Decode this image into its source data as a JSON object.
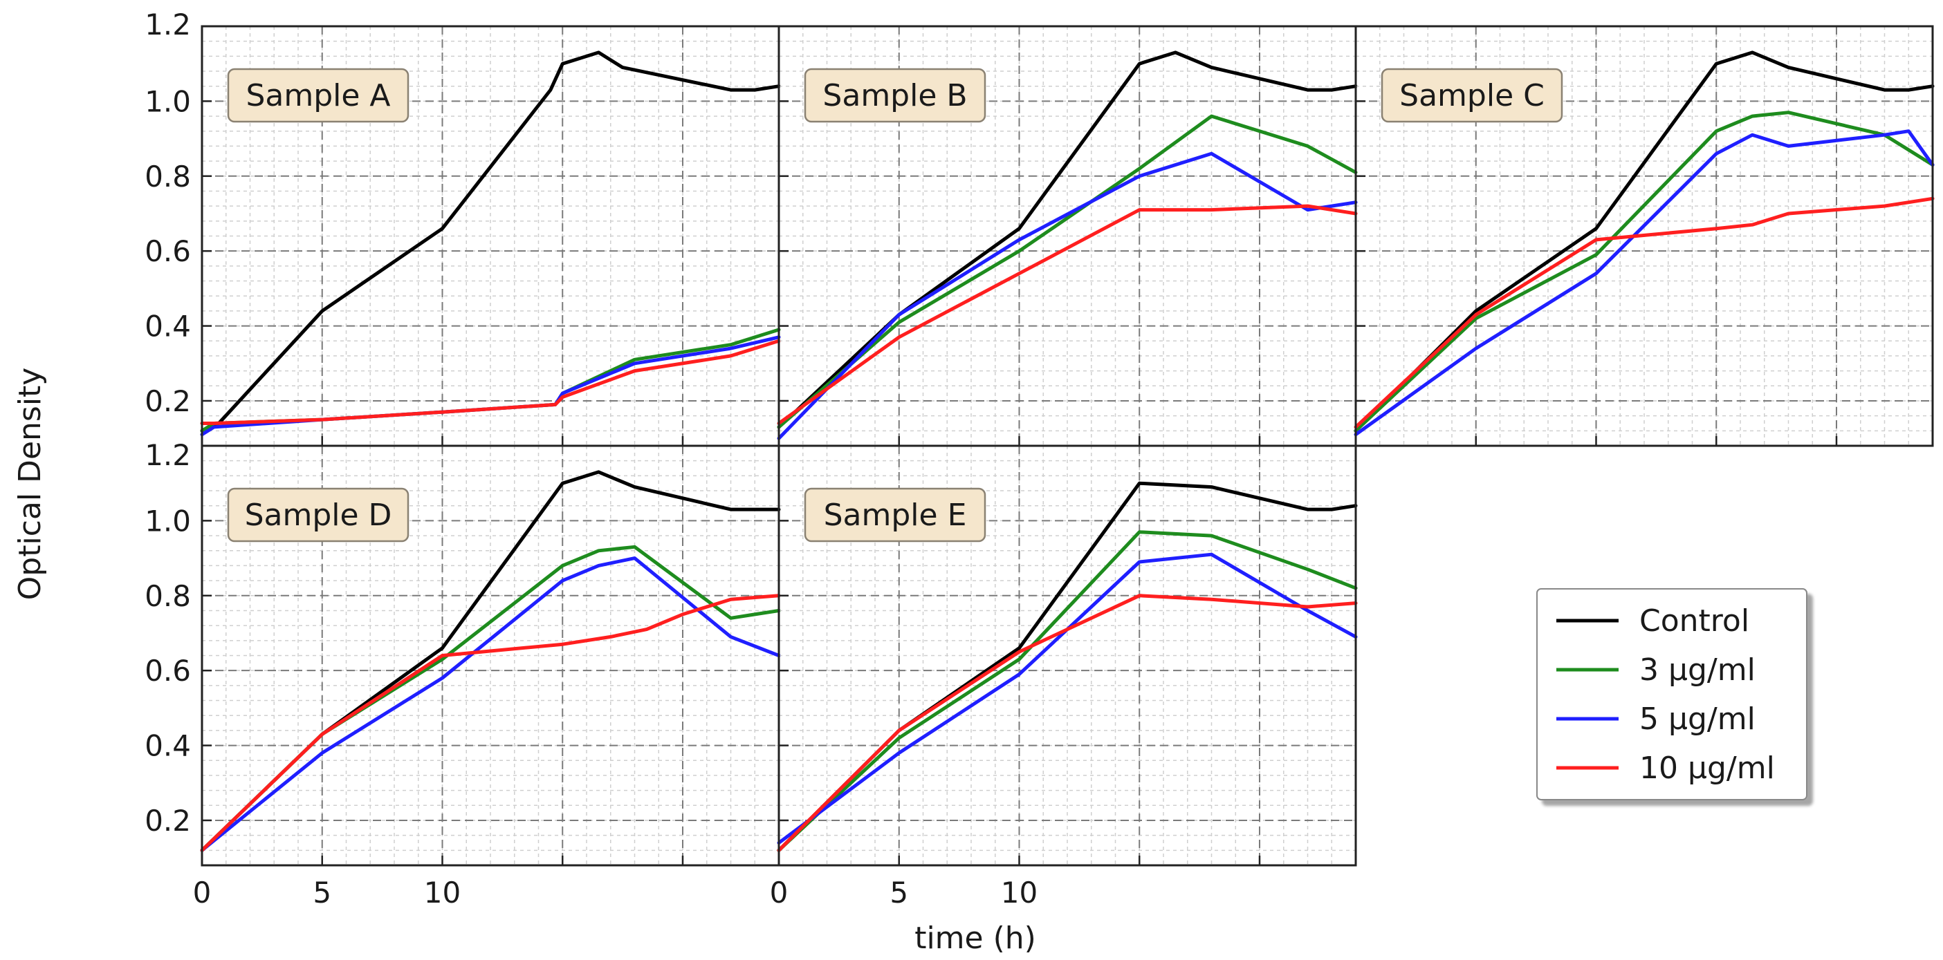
{
  "chart_data": {
    "type": "line",
    "ylabel": "Optical Density",
    "xlabel": "time (h)",
    "xlim": [
      0,
      24
    ],
    "ylim": [
      0.08,
      1.2
    ],
    "x_tick_labels": [
      "0",
      "5",
      "10"
    ],
    "y_tick_labels": [
      "0.2",
      "0.4",
      "0.6",
      "0.8",
      "1.0",
      "1.2"
    ],
    "grid": true,
    "legend_position": "lower-right (outside panels)",
    "legend": [
      {
        "name": "Control",
        "color": "#000000"
      },
      {
        "name": "3 μg/ml",
        "color": "#1e8c1e"
      },
      {
        "name": "5 μg/ml",
        "color": "#1f1fff"
      },
      {
        "name": "10 μg/ml",
        "color": "#ff1f1f"
      }
    ],
    "panels": [
      {
        "title": "Sample A",
        "series": [
          {
            "name": "Control",
            "color": "#000000",
            "x": [
              0,
              0.7,
              5,
              10,
              14.5,
              15,
              16.5,
              17.5,
              22,
              23,
              24
            ],
            "y": [
              0.12,
              0.14,
              0.44,
              0.66,
              1.03,
              1.1,
              1.13,
              1.09,
              1.03,
              1.03,
              1.04
            ]
          },
          {
            "name": "3 μg/ml",
            "color": "#1e8c1e",
            "x": [
              0,
              0.5,
              5,
              10,
              14.7,
              15,
              18,
              22,
              24
            ],
            "y": [
              0.12,
              0.14,
              0.15,
              0.17,
              0.19,
              0.22,
              0.31,
              0.35,
              0.39
            ]
          },
          {
            "name": "5 μg/ml",
            "color": "#1f1fff",
            "x": [
              0,
              0.5,
              5,
              10,
              14.7,
              15,
              18,
              22,
              24
            ],
            "y": [
              0.11,
              0.13,
              0.15,
              0.17,
              0.19,
              0.22,
              0.3,
              0.34,
              0.37
            ]
          },
          {
            "name": "10 μg/ml",
            "color": "#ff1f1f",
            "x": [
              0,
              0.5,
              5,
              10,
              14.7,
              15,
              18,
              22,
              24
            ],
            "y": [
              0.14,
              0.14,
              0.15,
              0.17,
              0.19,
              0.21,
              0.28,
              0.32,
              0.36
            ]
          }
        ]
      },
      {
        "title": "Sample B",
        "series": [
          {
            "name": "Control",
            "color": "#000000",
            "x": [
              0,
              5,
              10,
              15,
              16.5,
              18,
              22,
              23,
              24
            ],
            "y": [
              0.13,
              0.43,
              0.66,
              1.1,
              1.13,
              1.09,
              1.03,
              1.03,
              1.04
            ]
          },
          {
            "name": "3 μg/ml",
            "color": "#1e8c1e",
            "x": [
              0,
              5,
              10,
              15,
              18,
              22,
              24
            ],
            "y": [
              0.13,
              0.41,
              0.6,
              0.82,
              0.96,
              0.88,
              0.81
            ]
          },
          {
            "name": "5 μg/ml",
            "color": "#1f1fff",
            "x": [
              0,
              5,
              10,
              15,
              18,
              22,
              24
            ],
            "y": [
              0.1,
              0.43,
              0.63,
              0.8,
              0.86,
              0.71,
              0.73
            ]
          },
          {
            "name": "10 μg/ml",
            "color": "#ff1f1f",
            "x": [
              0,
              5,
              10,
              15,
              16,
              18,
              22,
              24
            ],
            "y": [
              0.14,
              0.37,
              0.54,
              0.71,
              0.71,
              0.71,
              0.72,
              0.7
            ]
          }
        ]
      },
      {
        "title": "Sample C",
        "series": [
          {
            "name": "Control",
            "color": "#000000",
            "x": [
              0,
              5,
              10,
              15,
              16.5,
              18,
              22,
              23,
              24
            ],
            "y": [
              0.12,
              0.44,
              0.66,
              1.1,
              1.13,
              1.09,
              1.03,
              1.03,
              1.04
            ]
          },
          {
            "name": "3 μg/ml",
            "color": "#1e8c1e",
            "x": [
              0,
              5,
              10,
              15,
              16.5,
              18,
              22,
              24
            ],
            "y": [
              0.12,
              0.42,
              0.59,
              0.92,
              0.96,
              0.97,
              0.91,
              0.83
            ]
          },
          {
            "name": "5 μg/ml",
            "color": "#1f1fff",
            "x": [
              0,
              5,
              10,
              15,
              16.5,
              18,
              22,
              23,
              24
            ],
            "y": [
              0.11,
              0.34,
              0.54,
              0.86,
              0.91,
              0.88,
              0.91,
              0.92,
              0.83
            ]
          },
          {
            "name": "10 μg/ml",
            "color": "#ff1f1f",
            "x": [
              0,
              5,
              10,
              15,
              16.5,
              18,
              22,
              24
            ],
            "y": [
              0.13,
              0.43,
              0.63,
              0.66,
              0.67,
              0.7,
              0.72,
              0.74
            ]
          }
        ]
      },
      {
        "title": "Sample D",
        "series": [
          {
            "name": "Control",
            "color": "#000000",
            "x": [
              0,
              5,
              10,
              15,
              16.5,
              18,
              22,
              23,
              24
            ],
            "y": [
              0.12,
              0.43,
              0.66,
              1.1,
              1.13,
              1.09,
              1.03,
              1.03,
              1.03
            ]
          },
          {
            "name": "3 μg/ml",
            "color": "#1e8c1e",
            "x": [
              0,
              5,
              10,
              15,
              16.5,
              18,
              22,
              23,
              24
            ],
            "y": [
              0.12,
              0.43,
              0.63,
              0.88,
              0.92,
              0.93,
              0.74,
              0.75,
              0.76
            ]
          },
          {
            "name": "5 μg/ml",
            "color": "#1f1fff",
            "x": [
              0,
              5,
              10,
              15,
              16.5,
              18,
              22,
              24
            ],
            "y": [
              0.12,
              0.38,
              0.58,
              0.84,
              0.88,
              0.9,
              0.69,
              0.64
            ]
          },
          {
            "name": "10 μg/ml",
            "color": "#ff1f1f",
            "x": [
              0,
              5,
              10,
              15,
              17,
              18.5,
              20,
              22,
              24
            ],
            "y": [
              0.12,
              0.43,
              0.64,
              0.67,
              0.69,
              0.71,
              0.75,
              0.79,
              0.8
            ]
          }
        ]
      },
      {
        "title": "Sample E",
        "series": [
          {
            "name": "Control",
            "color": "#000000",
            "x": [
              0,
              5,
              10,
              15,
              18,
              22,
              23,
              24
            ],
            "y": [
              0.12,
              0.44,
              0.66,
              1.1,
              1.09,
              1.03,
              1.03,
              1.04
            ]
          },
          {
            "name": "3 μg/ml",
            "color": "#1e8c1e",
            "x": [
              0,
              5,
              10,
              15,
              18,
              22,
              24
            ],
            "y": [
              0.12,
              0.42,
              0.63,
              0.97,
              0.96,
              0.87,
              0.82
            ]
          },
          {
            "name": "5 μg/ml",
            "color": "#1f1fff",
            "x": [
              0,
              5,
              10,
              15,
              18,
              22,
              24
            ],
            "y": [
              0.14,
              0.38,
              0.59,
              0.89,
              0.91,
              0.76,
              0.69
            ]
          },
          {
            "name": "10 μg/ml",
            "color": "#ff1f1f",
            "x": [
              0,
              5,
              10,
              15,
              18,
              22,
              24
            ],
            "y": [
              0.12,
              0.44,
              0.65,
              0.8,
              0.79,
              0.77,
              0.78
            ]
          }
        ]
      }
    ]
  }
}
